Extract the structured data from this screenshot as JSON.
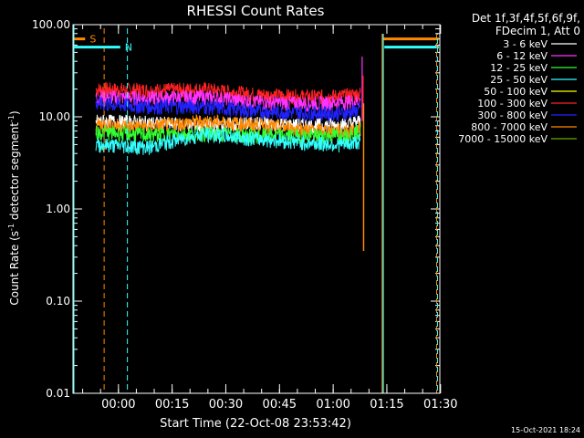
{
  "chart_data": {
    "type": "line",
    "title": "RHESSI Count Rates",
    "xlabel": "Start Time (22-Oct-08 23:53:42)",
    "ylabel_parts": {
      "a": "Count Rate (s",
      "sup": "-1",
      "b": " detector segment",
      "sup2": "-1",
      "c": ")"
    },
    "y_scale": "log",
    "ylim": [
      0.01,
      100
    ],
    "y_ticks": [
      {
        "value": 100,
        "label": "100.00"
      },
      {
        "value": 10,
        "label": "10.00"
      },
      {
        "value": 1,
        "label": "1.00"
      },
      {
        "value": 0.1,
        "label": "0.10"
      },
      {
        "value": 0.01,
        "label": "0.01"
      }
    ],
    "x_unit": "minutes after 23:53:42",
    "xlim": [
      -6.4,
      96.1
    ],
    "x_ticks": [
      {
        "value": 6.3,
        "label": "00:00"
      },
      {
        "value": 21.3,
        "label": "00:15"
      },
      {
        "value": 36.3,
        "label": "00:30"
      },
      {
        "value": 51.3,
        "label": "00:45"
      },
      {
        "value": 66.3,
        "label": "01:00"
      },
      {
        "value": 81.3,
        "label": "01:15"
      },
      {
        "value": 96.3,
        "label": "01:30"
      }
    ],
    "header": {
      "line1": "Det 1f,3f,4f,5f,6f,9f,",
      "line2": "FDecim 1, Att 0"
    },
    "series": [
      {
        "name": "3 - 6 keV",
        "color": "#ffffff",
        "x": [
          0,
          15,
          30,
          45,
          60,
          70,
          74
        ],
        "y": [
          9.0,
          8.6,
          8.0,
          8.5,
          8.0,
          8.2,
          9.0
        ]
      },
      {
        "name": "6 - 12 keV",
        "color": "#ff33ff",
        "x": [
          0,
          15,
          30,
          45,
          60,
          70,
          74
        ],
        "y": [
          16.5,
          16.0,
          16.5,
          14.5,
          14.0,
          14.5,
          15.0
        ]
      },
      {
        "name": "12 - 25 keV",
        "color": "#33ff33",
        "x": [
          0,
          15,
          30,
          45,
          60,
          70,
          74
        ],
        "y": [
          6.8,
          6.4,
          6.6,
          6.3,
          6.2,
          6.4,
          7.0
        ]
      },
      {
        "name": "25 - 50 keV",
        "color": "#33ffff",
        "x": [
          0,
          15,
          30,
          45,
          60,
          70,
          74
        ],
        "y": [
          5.0,
          4.7,
          6.5,
          5.8,
          5.2,
          5.0,
          5.5
        ]
      },
      {
        "name": "50 - 100 keV",
        "color": "#ffff00",
        "x": [],
        "y": []
      },
      {
        "name": "100 - 300 keV",
        "color": "#ff2222",
        "x": [
          0,
          15,
          30,
          45,
          60,
          70,
          74
        ],
        "y": [
          20.0,
          19.5,
          20.0,
          17.5,
          16.5,
          17.0,
          18.0
        ]
      },
      {
        "name": "300 - 800 keV",
        "color": "#2222ff",
        "x": [
          0,
          15,
          30,
          45,
          60,
          70,
          74
        ],
        "y": [
          14.0,
          13.0,
          13.0,
          11.5,
          11.0,
          11.0,
          12.0
        ]
      },
      {
        "name": "800 - 7000 keV",
        "color": "#ff8800",
        "x": [
          0,
          15,
          30,
          45,
          60,
          70,
          74
        ],
        "y": [
          8.3,
          7.8,
          9.0,
          8.2,
          7.2,
          7.0,
          7.5
        ]
      },
      {
        "name": "7000 - 15000 keV",
        "color": "#66aa00",
        "x": [],
        "y": []
      }
    ],
    "segments": [
      {
        "id": "S",
        "label": "S",
        "color": "#ff8800",
        "x_mark": 2.3,
        "x_start": -6.4,
        "x_end": -3.0,
        "level": 70
      },
      {
        "id": "N",
        "label": "N",
        "color": "#33ffff",
        "x_mark": 8.8,
        "x_start": -6.4,
        "x_end": 6.8,
        "level": 57
      }
    ],
    "right_flags": [
      {
        "color": "#ff8800",
        "x_mark": 80.0,
        "x_start": 80.3,
        "x_end": 95.8,
        "level": 70
      },
      {
        "color": "#33ffff",
        "x_mark": 80.3,
        "x_start": 80.6,
        "x_end": 95.8,
        "level": 57
      }
    ],
    "grid": false,
    "legend_position": "right"
  },
  "footer": {
    "timestamp": "15-Oct-2021 18:24"
  }
}
